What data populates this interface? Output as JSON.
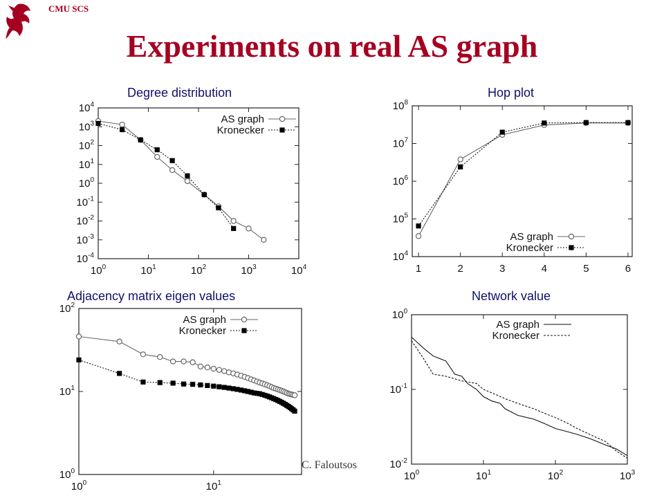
{
  "header": {
    "label": "CMU SCS",
    "icon": "griffin-logo-icon"
  },
  "slide_title": "Experiments on real AS graph",
  "footer": {
    "author": "C. Faloutsos"
  },
  "colors": {
    "title": "#a50021",
    "subtitle": "#10106a"
  },
  "chart_data": [
    {
      "type": "scatter",
      "title": "Degree distribution",
      "xscale": "log",
      "yscale": "log",
      "xlim": [
        1,
        10000
      ],
      "ylim": [
        0.0001,
        10000
      ],
      "xticks": [
        {
          "v": 1,
          "b": "10",
          "e": "0"
        },
        {
          "v": 10,
          "b": "10",
          "e": "1"
        },
        {
          "v": 100,
          "b": "10",
          "e": "2"
        },
        {
          "v": 1000,
          "b": "10",
          "e": "3"
        },
        {
          "v": 10000,
          "b": "10",
          "e": "4"
        }
      ],
      "yticks": [
        {
          "v": 0.0001,
          "b": "10",
          "e": "-4"
        },
        {
          "v": 0.001,
          "b": "10",
          "e": "-3"
        },
        {
          "v": 0.01,
          "b": "10",
          "e": "-2"
        },
        {
          "v": 0.1,
          "b": "10",
          "e": "-1"
        },
        {
          "v": 1,
          "b": "10",
          "e": "0"
        },
        {
          "v": 10,
          "b": "10",
          "e": "1"
        },
        {
          "v": 100,
          "b": "10",
          "e": "2"
        },
        {
          "v": 1000,
          "b": "10",
          "e": "3"
        },
        {
          "v": 10000,
          "b": "10",
          "e": "4"
        }
      ],
      "legend": "top-right",
      "series": [
        {
          "name": "AS graph",
          "marker": "circle",
          "line": "solid",
          "points": [
            [
              1,
              2000
            ],
            [
              3,
              1300
            ],
            [
              7,
              200
            ],
            [
              15,
              25
            ],
            [
              30,
              5
            ],
            [
              60,
              1.3
            ],
            [
              130,
              0.25
            ],
            [
              250,
              0.06
            ],
            [
              500,
              0.01
            ],
            [
              1000,
              0.004
            ],
            [
              2000,
              0.001
            ]
          ]
        },
        {
          "name": "Kronecker",
          "marker": "square",
          "line": "dotted",
          "points": [
            [
              1,
              1500
            ],
            [
              3,
              700
            ],
            [
              7,
              200
            ],
            [
              15,
              60
            ],
            [
              30,
              16
            ],
            [
              60,
              2.5
            ],
            [
              130,
              0.25
            ],
            [
              250,
              0.05
            ],
            [
              500,
              0.004
            ]
          ]
        }
      ]
    },
    {
      "type": "line",
      "title": "Hop plot",
      "xscale": "linear",
      "yscale": "log",
      "xlim": [
        0.85,
        6.1
      ],
      "ylim": [
        10000,
        100000000
      ],
      "xticks": [
        {
          "v": 1,
          "b": "1"
        },
        {
          "v": 2,
          "b": "2"
        },
        {
          "v": 3,
          "b": "3"
        },
        {
          "v": 4,
          "b": "4"
        },
        {
          "v": 5,
          "b": "5"
        },
        {
          "v": 6,
          "b": "6"
        }
      ],
      "yticks": [
        {
          "v": 10000,
          "b": "10",
          "e": "4"
        },
        {
          "v": 100000,
          "b": "10",
          "e": "5"
        },
        {
          "v": 1000000,
          "b": "10",
          "e": "6"
        },
        {
          "v": 10000000,
          "b": "10",
          "e": "7"
        },
        {
          "v": 100000000,
          "b": "10",
          "e": "8"
        }
      ],
      "legend": "bottom-right",
      "series": [
        {
          "name": "AS graph",
          "marker": "circle",
          "line": "solid",
          "points": [
            [
              1,
              35000
            ],
            [
              2,
              3800000
            ],
            [
              3,
              17000000
            ],
            [
              4,
              31000000
            ],
            [
              5,
              35000000
            ],
            [
              6,
              35000000
            ]
          ]
        },
        {
          "name": "Kronecker",
          "marker": "square",
          "line": "dotted",
          "points": [
            [
              1,
              65000
            ],
            [
              2,
              2400000
            ],
            [
              3,
              20000000
            ],
            [
              4,
              35000000
            ],
            [
              5,
              36000000
            ],
            [
              6,
              36000000
            ]
          ]
        }
      ]
    },
    {
      "type": "scatter",
      "title": "Adjacency matrix eigen values",
      "xscale": "log",
      "yscale": "log",
      "xlim": [
        1,
        45
      ],
      "ylim": [
        1,
        100
      ],
      "xticks": [
        {
          "v": 1,
          "b": "10",
          "e": "0"
        },
        {
          "v": 10,
          "b": "10",
          "e": "1"
        }
      ],
      "yticks": [
        {
          "v": 1,
          "b": "10",
          "e": "0"
        },
        {
          "v": 10,
          "b": "10",
          "e": "1"
        },
        {
          "v": 100,
          "b": "10",
          "e": "2"
        }
      ],
      "legend": "top-right",
      "series": [
        {
          "name": "AS graph",
          "marker": "circle",
          "line": "solid",
          "points": [
            [
              1,
              46
            ],
            [
              2,
              40
            ],
            [
              3,
              28
            ],
            [
              4,
              26
            ],
            [
              5,
              23
            ],
            [
              6,
              23
            ],
            [
              7,
              22.5
            ],
            [
              8,
              20
            ],
            [
              9,
              19.5
            ],
            [
              10,
              18.8
            ],
            [
              11,
              18.2
            ],
            [
              12,
              17.6
            ],
            [
              13,
              17
            ],
            [
              14,
              16.5
            ],
            [
              15,
              16
            ],
            [
              16,
              15.5
            ],
            [
              17,
              15
            ],
            [
              18,
              14.5
            ],
            [
              19,
              14
            ],
            [
              20,
              13.6
            ],
            [
              21,
              13.2
            ],
            [
              22,
              12.8
            ],
            [
              23,
              12.5
            ],
            [
              24,
              12.2
            ],
            [
              25,
              11.9
            ],
            [
              26,
              11.6
            ],
            [
              27,
              11.3
            ],
            [
              28,
              11
            ],
            [
              29,
              10.8
            ],
            [
              30,
              10.6
            ],
            [
              31,
              10.4
            ],
            [
              32,
              10.2
            ],
            [
              33,
              10
            ],
            [
              34,
              9.8
            ],
            [
              35,
              9.6
            ],
            [
              36,
              9.4
            ],
            [
              37,
              9.3
            ],
            [
              38,
              9.2
            ],
            [
              39,
              9.1
            ],
            [
              40,
              9.0
            ]
          ]
        },
        {
          "name": "Kronecker",
          "marker": "square",
          "line": "dotted",
          "points": [
            [
              1,
              24
            ],
            [
              2,
              16.5
            ],
            [
              3,
              13
            ],
            [
              4,
              12.8
            ],
            [
              5,
              12.6
            ],
            [
              6,
              12.3
            ],
            [
              7,
              12.2
            ],
            [
              8,
              12
            ],
            [
              9,
              11.8
            ],
            [
              10,
              11.6
            ],
            [
              11,
              11.4
            ],
            [
              12,
              11.2
            ],
            [
              13,
              11
            ],
            [
              14,
              10.8
            ],
            [
              15,
              10.6
            ],
            [
              16,
              10.4
            ],
            [
              17,
              10.2
            ],
            [
              18,
              10
            ],
            [
              19,
              9.8
            ],
            [
              20,
              9.6
            ],
            [
              21,
              9.5
            ],
            [
              22,
              9.4
            ],
            [
              23,
              9.2
            ],
            [
              24,
              9.0
            ],
            [
              25,
              8.8
            ],
            [
              26,
              8.6
            ],
            [
              27,
              8.4
            ],
            [
              28,
              8.2
            ],
            [
              29,
              8.0
            ],
            [
              30,
              7.8
            ],
            [
              31,
              7.6
            ],
            [
              32,
              7.4
            ],
            [
              33,
              7.2
            ],
            [
              34,
              7.0
            ],
            [
              35,
              6.8
            ],
            [
              36,
              6.6
            ],
            [
              37,
              6.4
            ],
            [
              38,
              6.2
            ],
            [
              39,
              6.0
            ],
            [
              40,
              5.8
            ]
          ]
        }
      ]
    },
    {
      "type": "line",
      "title": "Network value",
      "xscale": "log",
      "yscale": "log",
      "xlim": [
        1,
        1000
      ],
      "ylim": [
        0.01,
        1
      ],
      "xticks": [
        {
          "v": 1,
          "b": "10",
          "e": "0"
        },
        {
          "v": 10,
          "b": "10",
          "e": "1"
        },
        {
          "v": 100,
          "b": "10",
          "e": "2"
        },
        {
          "v": 1000,
          "b": "10",
          "e": "3"
        }
      ],
      "yticks": [
        {
          "v": 0.01,
          "b": "10",
          "e": "-2"
        },
        {
          "v": 0.1,
          "b": "10",
          "e": "-1"
        },
        {
          "v": 1,
          "b": "10",
          "e": "0"
        }
      ],
      "legend": "top-right",
      "series": [
        {
          "name": "AS graph",
          "marker": "none",
          "line": "solid",
          "points": [
            [
              1,
              0.5
            ],
            [
              1.5,
              0.35
            ],
            [
              2,
              0.28
            ],
            [
              3,
              0.24
            ],
            [
              4,
              0.16
            ],
            [
              5,
              0.15
            ],
            [
              6,
              0.12
            ],
            [
              8,
              0.1
            ],
            [
              10,
              0.08
            ],
            [
              13,
              0.07
            ],
            [
              17,
              0.065
            ],
            [
              20,
              0.055
            ],
            [
              30,
              0.045
            ],
            [
              50,
              0.04
            ],
            [
              70,
              0.035
            ],
            [
              100,
              0.03
            ],
            [
              150,
              0.027
            ],
            [
              200,
              0.025
            ],
            [
              300,
              0.022
            ],
            [
              500,
              0.018
            ],
            [
              700,
              0.016
            ],
            [
              1000,
              0.013
            ]
          ]
        },
        {
          "name": "Kronecker",
          "marker": "none",
          "line": "dashed",
          "points": [
            [
              1,
              0.45
            ],
            [
              1.5,
              0.25
            ],
            [
              2,
              0.16
            ],
            [
              3,
              0.15
            ],
            [
              5,
              0.13
            ],
            [
              8,
              0.12
            ],
            [
              10,
              0.1
            ],
            [
              15,
              0.085
            ],
            [
              20,
              0.075
            ],
            [
              30,
              0.065
            ],
            [
              50,
              0.055
            ],
            [
              70,
              0.048
            ],
            [
              100,
              0.042
            ],
            [
              150,
              0.035
            ],
            [
              200,
              0.03
            ],
            [
              300,
              0.025
            ],
            [
              500,
              0.02
            ],
            [
              700,
              0.015
            ],
            [
              1000,
              0.012
            ]
          ]
        }
      ]
    }
  ]
}
